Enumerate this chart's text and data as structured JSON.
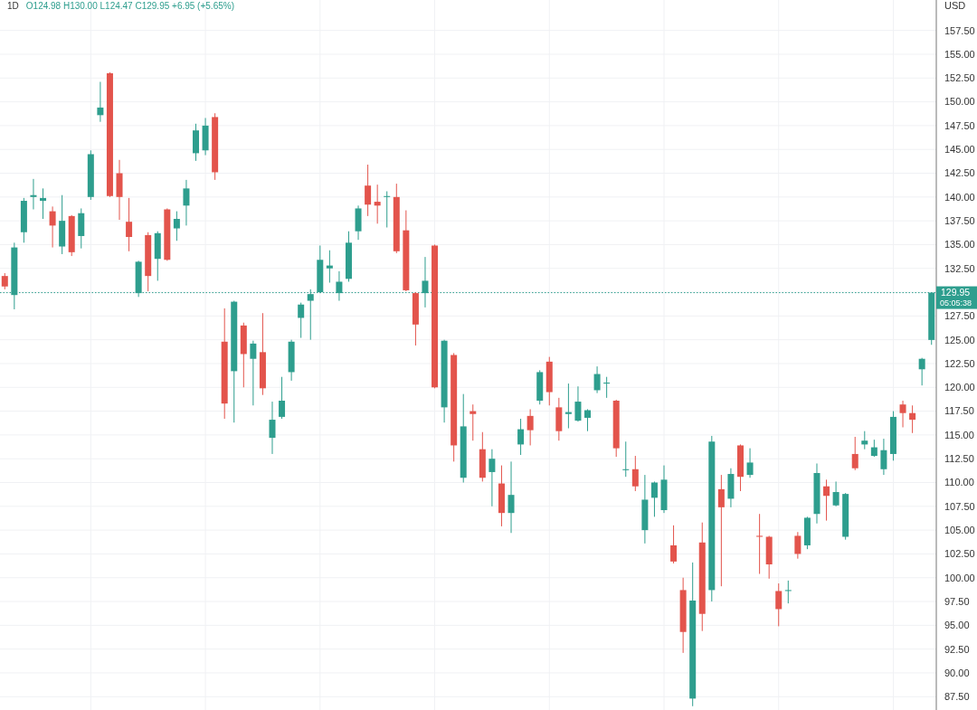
{
  "chart_data": {
    "type": "candlestick",
    "title": "1D",
    "subtitle": "O124.98 H130.00 L124.47 C129.95 +6.95 (+5.65%)",
    "ylabel": "USD",
    "categories": [
      null,
      null,
      null,
      null,
      null,
      null,
      null,
      null,
      null,
      null,
      null,
      null,
      null,
      null,
      null,
      null,
      null,
      null,
      null,
      null,
      null,
      null,
      null,
      null,
      null,
      null,
      null,
      null,
      null,
      null,
      null,
      null,
      null,
      null,
      null,
      null,
      null,
      null,
      null,
      null,
      null,
      null,
      null,
      null,
      null,
      null,
      null,
      null,
      null,
      null,
      null,
      null,
      null,
      null,
      null,
      null,
      null,
      null,
      null,
      null,
      null,
      null,
      null,
      null,
      null,
      null,
      null,
      null,
      null,
      null,
      null,
      null,
      null,
      null,
      null,
      null,
      null,
      null,
      null,
      null,
      null,
      null,
      null,
      null,
      null,
      null,
      null,
      null,
      null,
      null,
      null,
      null,
      null,
      null,
      null,
      null,
      null,
      null
    ],
    "ohlc": [
      [
        131.7,
        132.0,
        130.3,
        130.6
      ],
      [
        129.7,
        135.2,
        128.2,
        134.7
      ],
      [
        136.3,
        139.9,
        135.2,
        139.6
      ],
      [
        140.0,
        141.9,
        138.7,
        140.2
      ],
      [
        139.6,
        140.9,
        137.7,
        139.9
      ],
      [
        138.5,
        139.0,
        134.7,
        137.0
      ],
      [
        134.8,
        140.2,
        134.0,
        137.5
      ],
      [
        138.0,
        138.1,
        133.8,
        134.2
      ],
      [
        135.9,
        138.8,
        134.6,
        138.3
      ],
      [
        140.0,
        144.9,
        139.7,
        144.5
      ],
      [
        148.6,
        152.1,
        147.9,
        149.4
      ],
      [
        153.0,
        153.1,
        140.0,
        140.1
      ],
      [
        142.5,
        143.9,
        137.6,
        140.0
      ],
      [
        137.4,
        139.9,
        134.3,
        135.8
      ],
      [
        129.9,
        133.3,
        129.5,
        133.2
      ],
      [
        136.0,
        136.3,
        130.1,
        131.7
      ],
      [
        133.5,
        136.4,
        131.2,
        136.2
      ],
      [
        138.7,
        138.8,
        133.3,
        133.4
      ],
      [
        136.7,
        138.5,
        135.4,
        137.7
      ],
      [
        139.1,
        141.8,
        137.0,
        140.9
      ],
      [
        144.6,
        147.7,
        143.8,
        147.0
      ],
      [
        144.9,
        148.3,
        144.4,
        147.5
      ],
      [
        148.4,
        148.8,
        141.8,
        142.6
      ],
      [
        124.8,
        128.3,
        116.7,
        118.3
      ],
      [
        121.7,
        129.1,
        116.3,
        129.0
      ],
      [
        126.5,
        126.8,
        120.0,
        123.5
      ],
      [
        123.0,
        124.9,
        118.1,
        124.6
      ],
      [
        123.7,
        127.8,
        119.2,
        119.9
      ],
      [
        114.7,
        118.5,
        113.0,
        116.6
      ],
      [
        116.9,
        121.1,
        116.7,
        118.6
      ],
      [
        121.6,
        125.0,
        120.7,
        124.8
      ],
      [
        127.3,
        128.9,
        125.2,
        128.7
      ],
      [
        129.1,
        130.3,
        125.0,
        129.8
      ],
      [
        130.0,
        134.9,
        129.9,
        133.4
      ],
      [
        132.5,
        134.4,
        131.0,
        132.8
      ],
      [
        129.9,
        132.2,
        129.1,
        131.1
      ],
      [
        131.4,
        136.4,
        131.1,
        135.2
      ],
      [
        136.4,
        139.1,
        135.5,
        138.8
      ],
      [
        141.2,
        143.4,
        138.0,
        139.2
      ],
      [
        139.5,
        141.3,
        137.2,
        139.1
      ],
      [
        140.0,
        140.6,
        136.8,
        140.1
      ],
      [
        140.0,
        141.4,
        134.1,
        134.3
      ],
      [
        136.5,
        138.6,
        130.1,
        130.2
      ],
      [
        129.9,
        130.0,
        124.4,
        126.6
      ],
      [
        129.9,
        133.7,
        128.4,
        131.2
      ],
      [
        134.9,
        135.0,
        119.9,
        120.0
      ],
      [
        117.9,
        125.0,
        116.3,
        124.9
      ],
      [
        123.4,
        123.6,
        112.2,
        113.9
      ],
      [
        110.5,
        119.3,
        110.0,
        115.9
      ],
      [
        117.5,
        118.2,
        114.4,
        117.2
      ],
      [
        113.5,
        115.3,
        110.1,
        110.5
      ],
      [
        111.1,
        113.5,
        107.5,
        112.5
      ],
      [
        109.9,
        111.8,
        105.4,
        106.8
      ],
      [
        106.8,
        112.2,
        104.7,
        108.7
      ],
      [
        114.0,
        116.7,
        112.9,
        115.6
      ],
      [
        117.0,
        117.7,
        113.9,
        115.5
      ],
      [
        118.6,
        121.8,
        118.2,
        121.6
      ],
      [
        122.7,
        123.2,
        118.1,
        119.5
      ],
      [
        117.9,
        118.9,
        114.4,
        115.4
      ],
      [
        117.2,
        120.4,
        115.7,
        117.4
      ],
      [
        116.5,
        120.1,
        116.4,
        118.5
      ],
      [
        116.8,
        117.7,
        115.4,
        117.6
      ],
      [
        119.7,
        122.2,
        119.4,
        121.4
      ],
      [
        120.4,
        121.1,
        118.9,
        120.5
      ],
      [
        118.6,
        118.7,
        112.7,
        113.6
      ],
      [
        111.3,
        114.3,
        110.6,
        111.4
      ],
      [
        111.4,
        112.8,
        109.1,
        109.6
      ],
      [
        105.0,
        110.8,
        103.6,
        108.2
      ],
      [
        108.4,
        110.1,
        106.4,
        110.0
      ],
      [
        107.1,
        111.8,
        106.8,
        110.3
      ],
      [
        103.4,
        105.5,
        101.5,
        101.7
      ],
      [
        98.7,
        100.0,
        92.1,
        94.3
      ],
      [
        87.3,
        101.6,
        86.5,
        97.6
      ],
      [
        103.7,
        105.8,
        94.4,
        96.2
      ],
      [
        98.7,
        114.9,
        97.5,
        114.3
      ],
      [
        109.3,
        110.8,
        99.1,
        107.4
      ],
      [
        108.3,
        111.5,
        107.4,
        110.9
      ],
      [
        113.9,
        114.0,
        109.1,
        110.6
      ],
      [
        110.8,
        113.6,
        110.5,
        112.1
      ],
      [
        104.4,
        106.7,
        100.4,
        104.3
      ],
      [
        104.3,
        104.4,
        99.9,
        101.4
      ],
      [
        98.6,
        99.4,
        94.9,
        96.7
      ],
      [
        98.6,
        99.7,
        97.3,
        98.7
      ],
      [
        104.4,
        104.8,
        102.0,
        102.5
      ],
      [
        103.4,
        106.4,
        103.0,
        106.3
      ],
      [
        106.7,
        112.0,
        105.7,
        111.0
      ],
      [
        109.6,
        110.3,
        106.0,
        108.6
      ],
      [
        107.6,
        110.1,
        107.5,
        109.0
      ],
      [
        104.3,
        108.9,
        104.0,
        108.8
      ],
      [
        113.0,
        114.8,
        111.3,
        111.5
      ],
      [
        114.0,
        115.4,
        113.5,
        114.4
      ],
      [
        112.8,
        114.5,
        112.7,
        113.7
      ],
      [
        111.4,
        114.6,
        110.8,
        113.4
      ],
      [
        113.0,
        117.5,
        112.3,
        116.9
      ],
      [
        118.2,
        118.6,
        115.8,
        117.3
      ],
      [
        117.3,
        118.1,
        115.2,
        116.6
      ],
      [
        121.9,
        123.1,
        120.2,
        123.0
      ],
      [
        124.98,
        130.0,
        124.47,
        129.95
      ]
    ],
    "colors": [
      "#e3544c",
      "#2e9e8e",
      "#2e9e8e",
      "#2e9e8e",
      "#2e9e8e",
      "#e3544c",
      "#2e9e8e",
      "#e3544c",
      "#2e9e8e",
      "#2e9e8e",
      "#2e9e8e",
      "#e3544c",
      "#e3544c",
      "#e3544c",
      "#2e9e8e",
      "#e3544c",
      "#2e9e8e",
      "#e3544c",
      "#2e9e8e",
      "#2e9e8e",
      "#2e9e8e",
      "#2e9e8e",
      "#e3544c",
      "#e3544c",
      "#2e9e8e",
      "#e3544c",
      "#2e9e8e",
      "#e3544c",
      "#2e9e8e",
      "#2e9e8e",
      "#2e9e8e",
      "#2e9e8e",
      "#2e9e8e",
      "#2e9e8e",
      "#2e9e8e",
      "#2e9e8e",
      "#2e9e8e",
      "#2e9e8e",
      "#e3544c",
      "#e3544c",
      "#2e9e8e",
      "#e3544c",
      "#e3544c",
      "#e3544c",
      "#2e9e8e",
      "#e3544c",
      "#2e9e8e",
      "#e3544c",
      "#2e9e8e",
      "#e3544c",
      "#e3544c",
      "#2e9e8e",
      "#e3544c",
      "#2e9e8e",
      "#2e9e8e",
      "#e3544c",
      "#2e9e8e",
      "#e3544c",
      "#e3544c",
      "#2e9e8e",
      "#2e9e8e",
      "#2e9e8e",
      "#2e9e8e",
      "#2e9e8e",
      "#e3544c",
      "#2e9e8e",
      "#e3544c",
      "#2e9e8e",
      "#2e9e8e",
      "#2e9e8e",
      "#e3544c",
      "#e3544c",
      "#2e9e8e",
      "#e3544c",
      "#2e9e8e",
      "#e3544c",
      "#2e9e8e",
      "#e3544c",
      "#2e9e8e",
      "#e3544c",
      "#e3544c",
      "#e3544c",
      "#2e9e8e",
      "#e3544c",
      "#2e9e8e",
      "#2e9e8e",
      "#e3544c",
      "#2e9e8e",
      "#2e9e8e",
      "#e3544c",
      "#2e9e8e",
      "#2e9e8e",
      "#2e9e8e",
      "#2e9e8e",
      "#e3544c",
      "#e3544c",
      "#2e9e8e",
      "#2e9e8e"
    ],
    "ylim": [
      86.1,
      160.7
    ],
    "yticks": [
      {
        "value": 87.5,
        "label": "87.50"
      },
      {
        "value": 90,
        "label": "90.00"
      },
      {
        "value": 92.5,
        "label": "92.50"
      },
      {
        "value": 95,
        "label": "95.00"
      },
      {
        "value": 97.5,
        "label": "97.50"
      },
      {
        "value": 100,
        "label": "100.00"
      },
      {
        "value": 102.5,
        "label": "102.50"
      },
      {
        "value": 105,
        "label": "105.00"
      },
      {
        "value": 107.5,
        "label": "107.50"
      },
      {
        "value": 110,
        "label": "110.00"
      },
      {
        "value": 112.5,
        "label": "112.50"
      },
      {
        "value": 115,
        "label": "115.00"
      },
      {
        "value": 117.5,
        "label": "117.50"
      },
      {
        "value": 120,
        "label": "120.00"
      },
      {
        "value": 122.5,
        "label": "122.50"
      },
      {
        "value": 125,
        "label": "125.00"
      },
      {
        "value": 127.5,
        "label": "127.50"
      },
      {
        "value": 130,
        "label": null
      },
      {
        "value": 132.5,
        "label": "132.50"
      },
      {
        "value": 135,
        "label": "135.00"
      },
      {
        "value": 137.5,
        "label": "137.50"
      },
      {
        "value": 140,
        "label": "140.00"
      },
      {
        "value": 142.5,
        "label": "142.50"
      },
      {
        "value": 145,
        "label": "145.00"
      },
      {
        "value": 147.5,
        "label": "147.50"
      },
      {
        "value": 150,
        "label": "150.00"
      },
      {
        "value": 152.5,
        "label": "152.50"
      },
      {
        "value": 155,
        "label": "155.00"
      },
      {
        "value": 157.5,
        "label": "157.50"
      }
    ],
    "ref_lines": [
      {
        "axis": "y",
        "value": 129.95,
        "label": "129.95",
        "color": "#2e9e8e",
        "line_style": "dotted"
      }
    ],
    "annotations": [
      "05:05:38"
    ],
    "grid": true,
    "tick_labels": "y"
  }
}
